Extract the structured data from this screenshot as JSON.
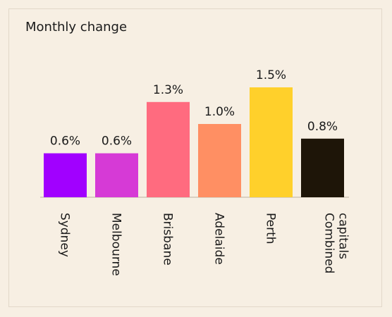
{
  "header": {
    "title": "Monthly change"
  },
  "chart_data": {
    "type": "bar",
    "title": "Monthly change",
    "categories": [
      [
        "Sydney"
      ],
      [
        "Melbourne"
      ],
      [
        "Brisbane"
      ],
      [
        "Adelaide"
      ],
      [
        "Perth"
      ],
      [
        "Combined",
        "capitals"
      ]
    ],
    "values": [
      0.6,
      0.6,
      1.3,
      1.0,
      1.5,
      0.8
    ],
    "data_labels": [
      "0.6%",
      "0.6%",
      "1.3%",
      "1.0%",
      "1.5%",
      "0.8%"
    ],
    "colors": [
      "#a100ff",
      "#d63ad6",
      "#ff6b7f",
      "#ff8f63",
      "#ffd02b",
      "#1e1508"
    ],
    "ylim": [
      0,
      1.5
    ],
    "unit": "%",
    "grid": false,
    "legend": "none"
  }
}
